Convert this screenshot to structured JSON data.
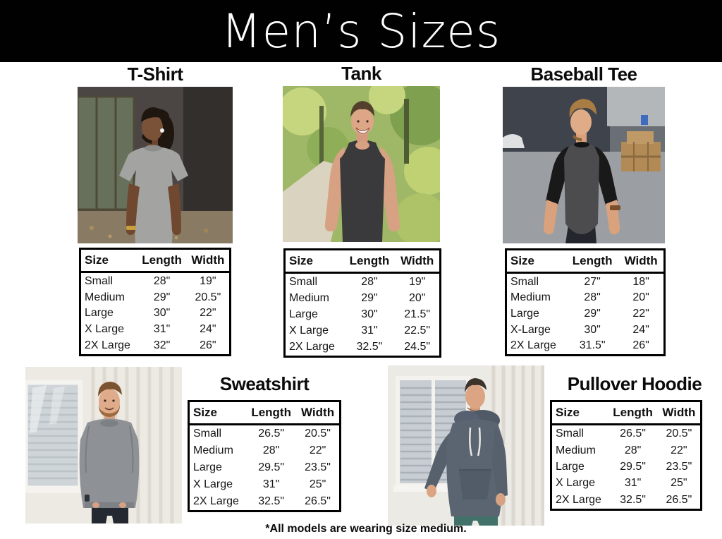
{
  "header": {
    "title": "Men’s Sizes",
    "bar_color": "#010101"
  },
  "size_table": {
    "headers": [
      "Size",
      "Length",
      "Width"
    ]
  },
  "products": [
    {
      "name": "T-Shirt",
      "photo_alt": "Man with dreadlocks wearing a heather gray t-shirt in front of an industrial wall",
      "garment_color": "#a3a3a1",
      "rows": [
        [
          "Small",
          "28\"",
          "19\""
        ],
        [
          "Medium",
          "29\"",
          "20.5\""
        ],
        [
          "Large",
          "30\"",
          "22\""
        ],
        [
          "X Large",
          "31\"",
          "24\""
        ],
        [
          "2X Large",
          "32\"",
          "26\""
        ]
      ]
    },
    {
      "name": "Tank",
      "photo_alt": "Smiling man wearing a dark charcoal tank top on a sunlit forest path",
      "garment_color": "#3a393b",
      "rows": [
        [
          "Small",
          "28\"",
          "19\""
        ],
        [
          "Medium",
          "29\"",
          "20\""
        ],
        [
          "Large",
          "30\"",
          "21.5\""
        ],
        [
          "X Large",
          "31\"",
          "22.5\""
        ],
        [
          "2X Large",
          "32.5\"",
          "24.5\""
        ]
      ]
    },
    {
      "name": "Baseball Tee",
      "photo_alt": "Man wearing a charcoal baseball tee with black three-quarter raglan sleeves in an industrial lot",
      "garment_color": "#4c4c4e",
      "sleeve_color": "#191919",
      "rows": [
        [
          "Small",
          "27\"",
          "18\""
        ],
        [
          "Medium",
          "28\"",
          "20\""
        ],
        [
          "Large",
          "29\"",
          "22\""
        ],
        [
          "X-Large",
          "30\"",
          "24\""
        ],
        [
          "2X Large",
          "31.5\"",
          "26\""
        ]
      ]
    },
    {
      "name": "Sweatshirt",
      "photo_alt": "Smiling bearded man in a heather gray crewneck sweatshirt with hands in his pockets by a white wall",
      "garment_color": "#8e9296",
      "rows": [
        [
          "Small",
          "26.5\"",
          "20.5\""
        ],
        [
          "Medium",
          "28\"",
          "22\""
        ],
        [
          "Large",
          "29.5\"",
          "23.5\""
        ],
        [
          "X Large",
          "31\"",
          "25\""
        ],
        [
          "2X Large",
          "32.5\"",
          "26.5\""
        ]
      ]
    },
    {
      "name": "Pullover Hoodie",
      "photo_alt": "Man in a slate gray pullover hoodie leaning against a white corrugated wall",
      "garment_color": "#5b6572",
      "rows": [
        [
          "Small",
          "26.5\"",
          "20.5\""
        ],
        [
          "Medium",
          "28\"",
          "22\""
        ],
        [
          "Large",
          "29.5\"",
          "23.5\""
        ],
        [
          "X Large",
          "31\"",
          "25\""
        ],
        [
          "2X Large",
          "32.5\"",
          "26.5\""
        ]
      ]
    }
  ],
  "footnote": "*All models are wearing size medium."
}
